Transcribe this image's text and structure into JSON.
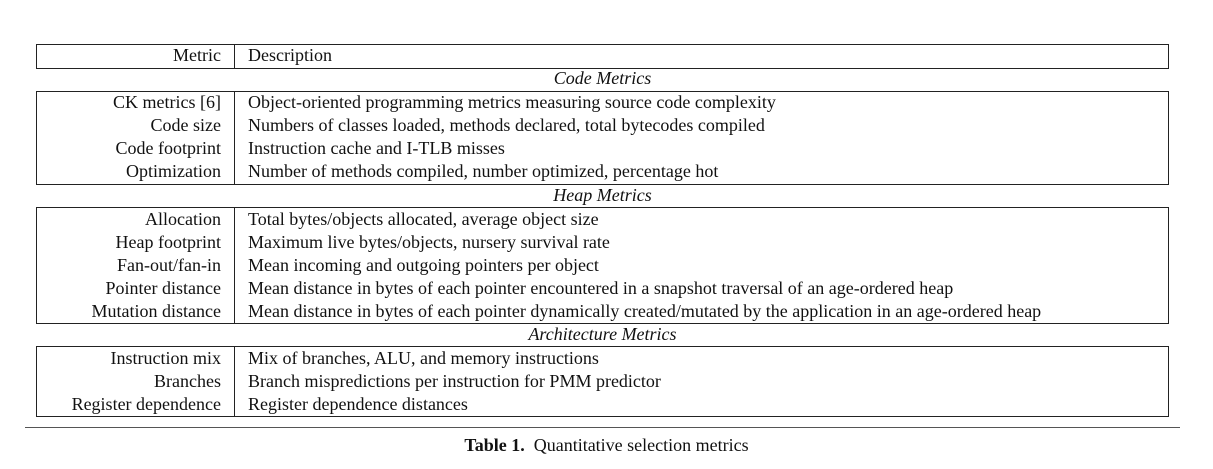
{
  "table": {
    "header": {
      "metric": "Metric",
      "description": "Description"
    },
    "sections": [
      {
        "title": "Code Metrics",
        "rows": [
          {
            "metric": "CK metrics [6]",
            "description": "Object-oriented programming metrics measuring source code complexity"
          },
          {
            "metric": "Code size",
            "description": "Numbers of classes loaded, methods declared, total bytecodes compiled"
          },
          {
            "metric": "Code footprint",
            "description": "Instruction cache and I-TLB misses"
          },
          {
            "metric": "Optimization",
            "description": "Number of methods compiled, number optimized, percentage hot"
          }
        ]
      },
      {
        "title": "Heap Metrics",
        "rows": [
          {
            "metric": "Allocation",
            "description": "Total bytes/objects allocated, average object size"
          },
          {
            "metric": "Heap footprint",
            "description": "Maximum live bytes/objects, nursery survival rate"
          },
          {
            "metric": "Fan-out/fan-in",
            "description": "Mean incoming and outgoing pointers per object"
          },
          {
            "metric": "Pointer distance",
            "description": "Mean distance in bytes of each pointer encountered in a snapshot traversal of an age-ordered heap"
          },
          {
            "metric": "Mutation distance",
            "description": "Mean distance in bytes of each pointer dynamically created/mutated by the application in an age-ordered heap"
          }
        ]
      },
      {
        "title": "Architecture Metrics",
        "rows": [
          {
            "metric": "Instruction mix",
            "description": "Mix of branches, ALU, and memory instructions"
          },
          {
            "metric": "Branches",
            "description": "Branch mispredictions per instruction for PMM predictor"
          },
          {
            "metric": "Register dependence",
            "description": "Register dependence distances"
          }
        ]
      }
    ]
  },
  "caption": {
    "label": "Table 1.",
    "text": "Quantitative selection metrics"
  }
}
